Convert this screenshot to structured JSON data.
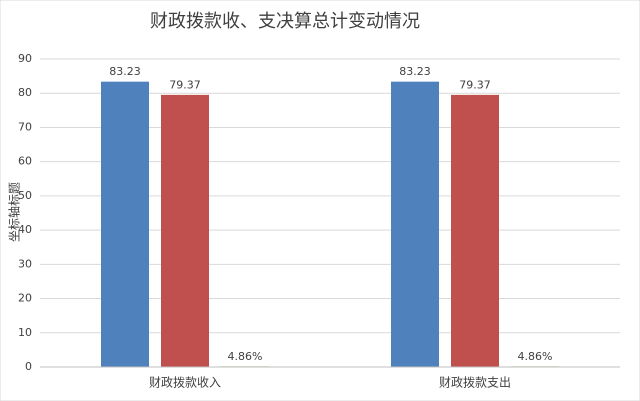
{
  "chart_data": {
    "type": "bar",
    "title": "财政拨款收、支决算总计变动情况",
    "y_label": "坐标轴标题",
    "categories": [
      "财政拨款收入",
      "财政拨款支出"
    ],
    "series": [
      {
        "color": "#4f81bd",
        "values": [
          83.23,
          83.23
        ]
      },
      {
        "color": "#c0504d",
        "values": [
          79.37,
          79.37
        ]
      },
      {
        "color": "#9bbb59",
        "values": [
          0.0486,
          0.0486
        ],
        "value_labels": [
          "4.86%",
          "4.86%"
        ]
      }
    ],
    "ylim": [
      0,
      90
    ],
    "yticks": [
      0,
      10,
      20,
      30,
      40,
      50,
      60,
      70,
      80,
      90
    ],
    "grid": true
  }
}
